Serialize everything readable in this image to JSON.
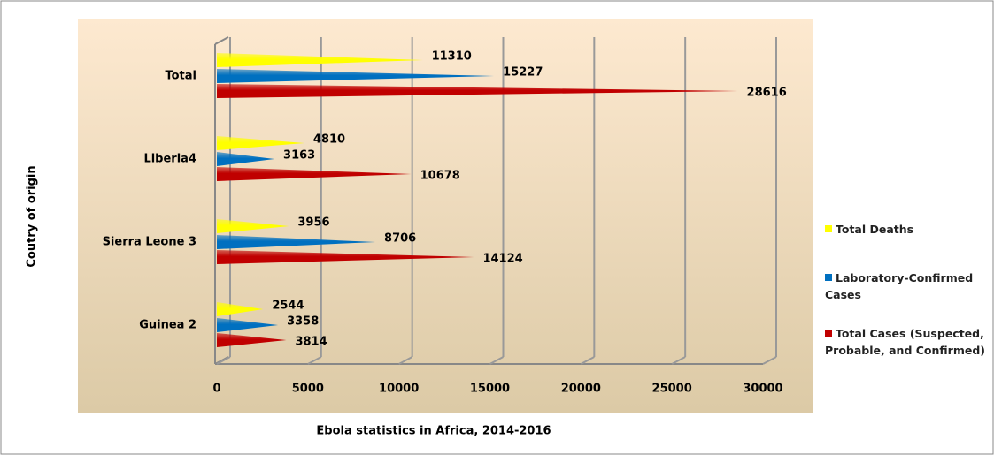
{
  "chart_data": {
    "type": "bar",
    "orientation": "horizontal",
    "x_label": "Ebola statistics in Africa, 2014-2016",
    "y_label": "Coutry of origin",
    "categories": [
      "Guinea 2",
      "Sierra Leone 3",
      "Liberia4",
      "Total"
    ],
    "series": [
      {
        "name": "Total Deaths",
        "color": "#ffff00",
        "values": [
          2544,
          3956,
          4810,
          11310
        ]
      },
      {
        "name": "Laboratory-Confirmed Cases",
        "color": "#0070c0",
        "values": [
          3358,
          8706,
          3163,
          15227
        ]
      },
      {
        "name": "Total Cases (Suspected, Probable, and Confirmed)",
        "color": "#c00000",
        "values": [
          3814,
          14124,
          10678,
          28616
        ]
      }
    ],
    "xlim": [
      0,
      30000
    ],
    "xticks": [
      0,
      5000,
      10000,
      15000,
      20000,
      25000,
      30000
    ],
    "grid": true,
    "legend": "right"
  }
}
